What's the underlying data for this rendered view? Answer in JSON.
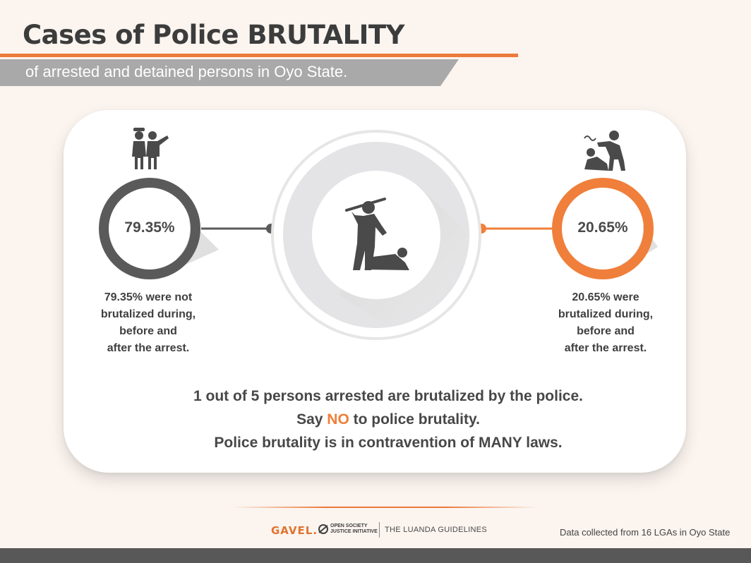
{
  "header": {
    "title": "Cases of Police BRUTALITY",
    "subtitle": "of arrested and detained persons in Oyo State."
  },
  "chart_data": {
    "type": "pie",
    "categories": [
      "were not brutalized",
      "were brutalized"
    ],
    "values": [
      79.35,
      20.65
    ],
    "labels": [
      "79.35%",
      "20.65%"
    ],
    "colors": [
      "#5a5a5a",
      "#ef7f3a"
    ]
  },
  "left_stat": {
    "value_label": "79.35%",
    "description_lines": [
      "79.35% were not",
      "brutalized during,",
      "before and",
      "after the arrest."
    ]
  },
  "right_stat": {
    "value_label": "20.65%",
    "description_lines": [
      "20.65% were",
      "brutalized during,",
      "before and",
      "after the arrest."
    ]
  },
  "messages": {
    "line1": "1 out of 5 persons arrested are brutalized by the police.",
    "line2_pre": "Say ",
    "line2_highlight": "NO",
    "line2_post": " to police brutality.",
    "line3": "Police brutality is in contravention of MANY laws."
  },
  "footer": {
    "logo_gavel": "GAVEL.",
    "logo_osji_line1": "OPEN SOCIETY",
    "logo_osji_line2": "JUSTICE INITIATIVE",
    "logo_luanda": "THE LUANDA GUIDELINES",
    "source": "Data collected from  16 LGAs in Oyo State"
  },
  "icons": {
    "left": "police-officers-icon",
    "right": "assault-icon",
    "center": "police-brutality-icon"
  }
}
